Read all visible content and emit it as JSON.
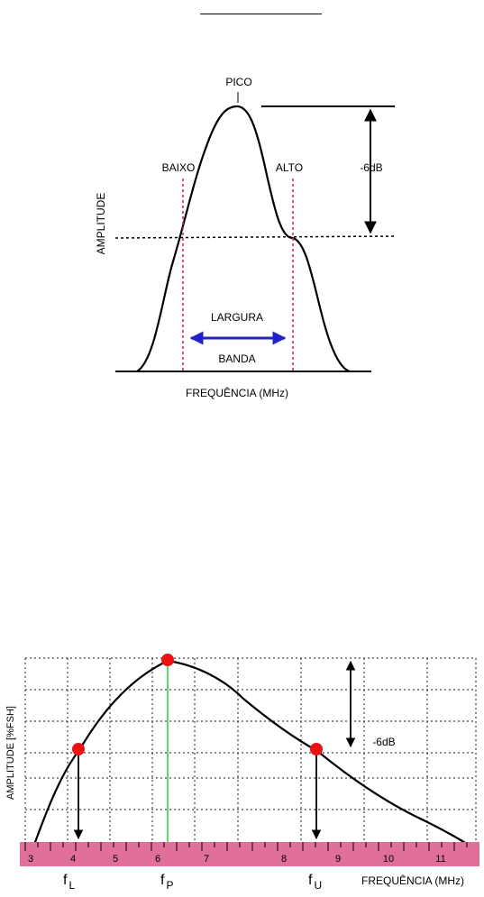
{
  "figure1": {
    "peak_label": "PICO",
    "low_label": "BAIXO",
    "high_label": "ALTO",
    "db_label": "-6dB",
    "y_axis_label": "AMPLITUDE",
    "bandwidth_label_top": "LARGURA",
    "bandwidth_label_bottom": "BANDA",
    "x_axis_label": "FREQUÊNCIA (MHz)"
  },
  "figure2": {
    "y_axis_label": "AMPLITUDE  [%FSH]",
    "x_axis_label": "FREQUÊNCIA  (MHz)",
    "db_label": "-6dB",
    "scale_ticks": [
      "3",
      "4",
      "5",
      "6",
      "7",
      "8",
      "9",
      "10",
      "11"
    ],
    "f_lower": {
      "main": "f",
      "sub": "L"
    },
    "f_peak": {
      "main": "f",
      "sub": "P"
    },
    "f_upper": {
      "main": "f",
      "sub": "U"
    },
    "colors": {
      "ruler": "#e0709a",
      "point": "#ee1111",
      "peak_line": "#33cc33",
      "arrow": "#2222cc",
      "cutoff": "#cc2255"
    }
  }
}
